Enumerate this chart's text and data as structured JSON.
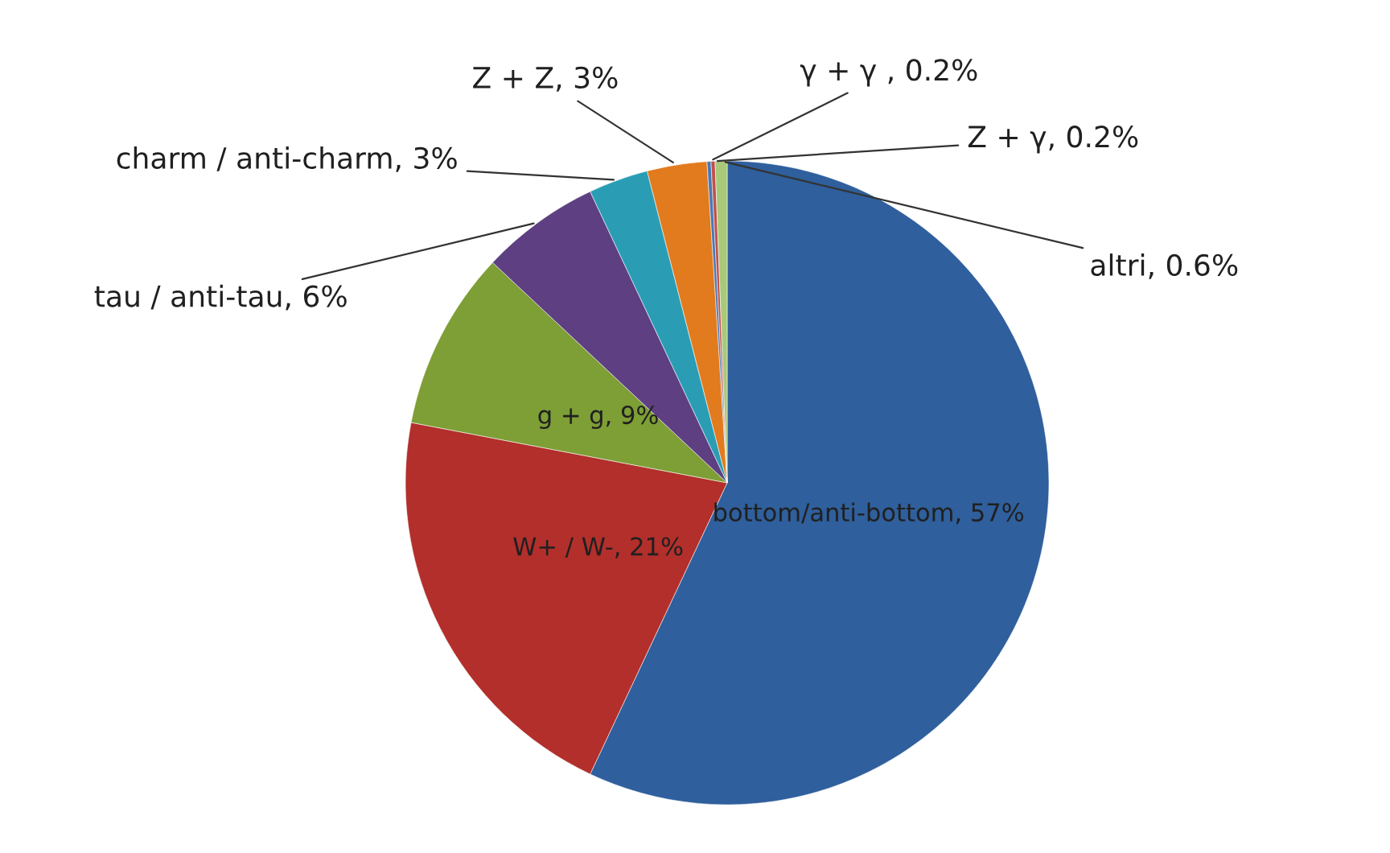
{
  "chart_data": {
    "type": "pie",
    "categories": [
      "bottom/anti-bottom, 57%",
      "W+ / W-, 21%",
      "g + g, 9%",
      "tau / anti-tau, 6%",
      "charm / anti-charm, 3%",
      "Z + Z, 3%",
      "γ + γ , 0.2%",
      "Z + γ, 0.2%",
      "altri, 0.6%"
    ],
    "values": [
      57,
      21,
      9,
      6,
      3,
      3,
      0.2,
      0.2,
      0.6
    ],
    "colors": [
      "#2f5f9c",
      "#b22f2b",
      "#7e9e36",
      "#5e3f82",
      "#2a9db5",
      "#e27a1e",
      "#4a78b4",
      "#c0504d",
      "#a9c97a"
    ],
    "legend": false
  }
}
